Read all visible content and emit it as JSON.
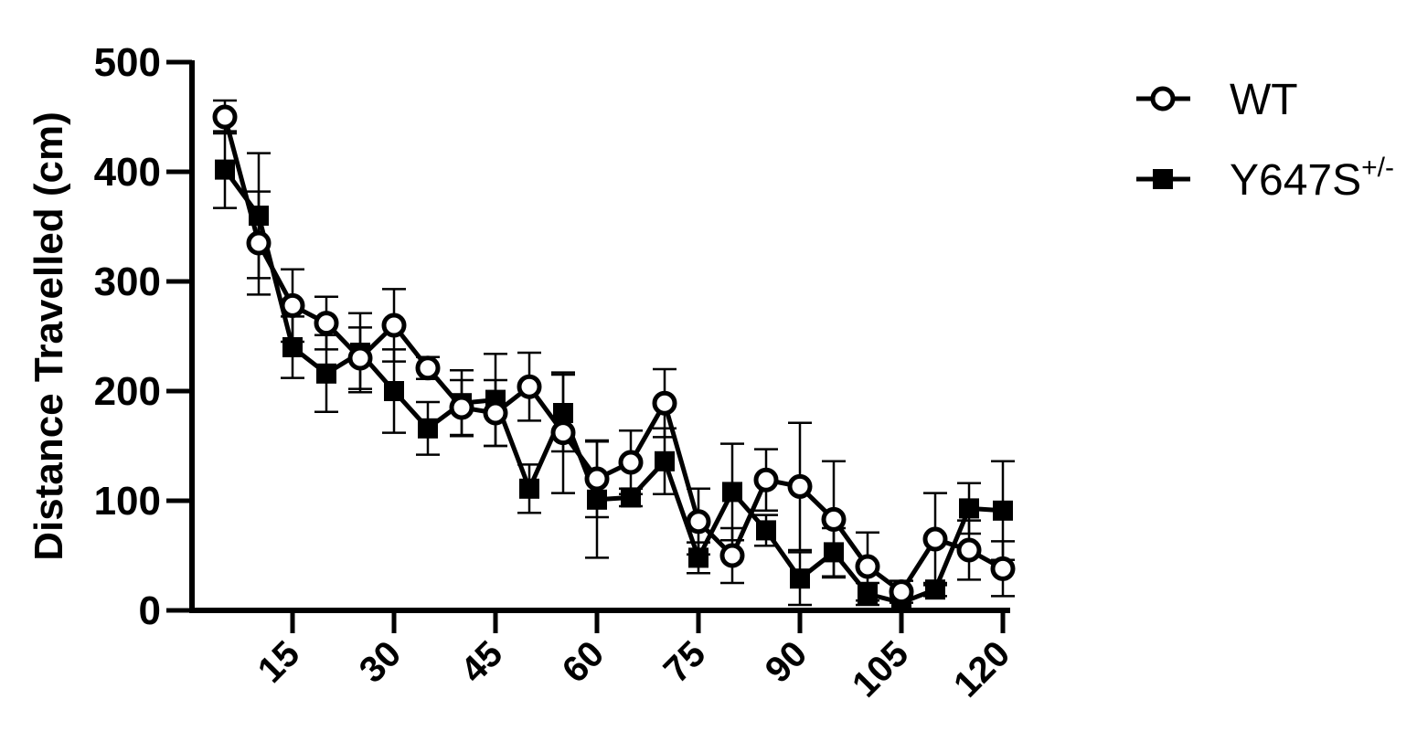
{
  "chart_data": {
    "type": "line",
    "ylabel": "Distance Travelled (cm)",
    "ylim": [
      0,
      500
    ],
    "y_ticks": [
      "0",
      "100",
      "200",
      "300",
      "400",
      "500"
    ],
    "xlim": [
      0,
      122
    ],
    "x_ticks": [
      "15",
      "30",
      "45",
      "60",
      "75",
      "90",
      "105",
      "120"
    ],
    "grid": false,
    "legend_position": "top-right",
    "x": [
      5,
      10,
      15,
      20,
      25,
      30,
      35,
      40,
      45,
      50,
      55,
      60,
      65,
      70,
      75,
      80,
      85,
      90,
      95,
      100,
      105,
      110,
      115,
      120
    ],
    "series": [
      {
        "name": "WT",
        "marker": "open-circle",
        "values": [
          450,
          335,
          278,
          262,
          230,
          260,
          221,
          185,
          180,
          204,
          162,
          120,
          135,
          189,
          81,
          50,
          119,
          113,
          83,
          40,
          17,
          65,
          55,
          38
        ],
        "errors": [
          15,
          47,
          33,
          24,
          28,
          33,
          10,
          25,
          30,
          31,
          55,
          35,
          29,
          31,
          30,
          25,
          28,
          58,
          53,
          31,
          10,
          42,
          27,
          25
        ]
      },
      {
        "name": "Y647S",
        "name_superscript": "+/-",
        "marker": "filled-square",
        "values": [
          402,
          360,
          240,
          216,
          235,
          200,
          166,
          189,
          192,
          111,
          180,
          101,
          103,
          136,
          48,
          108,
          73,
          29,
          53,
          15,
          7,
          19,
          93,
          91
        ],
        "errors": [
          35,
          57,
          28,
          35,
          36,
          38,
          24,
          30,
          42,
          22,
          35,
          53,
          8,
          30,
          14,
          44,
          14,
          24,
          22,
          10,
          6,
          6,
          23,
          45
        ]
      }
    ]
  }
}
